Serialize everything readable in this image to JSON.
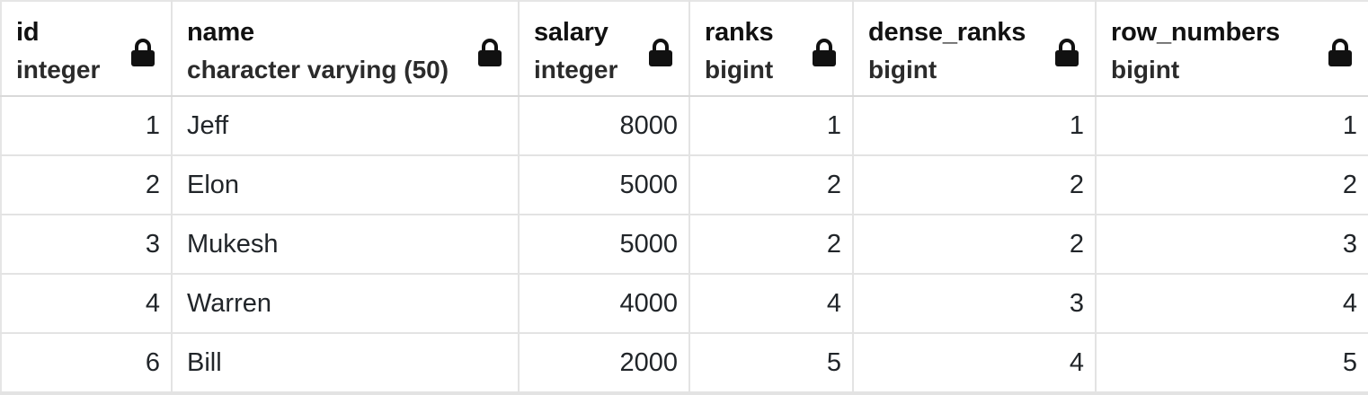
{
  "columns": [
    {
      "name": "id",
      "type": "integer",
      "align": "right",
      "icon": "lock-icon"
    },
    {
      "name": "name",
      "type": "character varying (50)",
      "align": "left",
      "icon": "lock-icon"
    },
    {
      "name": "salary",
      "type": "integer",
      "align": "right",
      "icon": "lock-icon"
    },
    {
      "name": "ranks",
      "type": "bigint",
      "align": "right",
      "icon": "lock-icon"
    },
    {
      "name": "dense_ranks",
      "type": "bigint",
      "align": "right",
      "icon": "lock-icon"
    },
    {
      "name": "row_numbers",
      "type": "bigint",
      "align": "right",
      "icon": "lock-icon"
    }
  ],
  "rows": [
    [
      "1",
      "Jeff",
      "8000",
      "1",
      "1",
      "1"
    ],
    [
      "2",
      "Elon",
      "5000",
      "2",
      "2",
      "2"
    ],
    [
      "3",
      "Mukesh",
      "5000",
      "2",
      "2",
      "3"
    ],
    [
      "4",
      "Warren",
      "4000",
      "4",
      "3",
      "4"
    ],
    [
      "6",
      "Bill",
      "2000",
      "5",
      "4",
      "5"
    ]
  ],
  "colors": {
    "grid_line": "#e3e3e3",
    "text": "#212529",
    "lock_icon": "#111111"
  }
}
